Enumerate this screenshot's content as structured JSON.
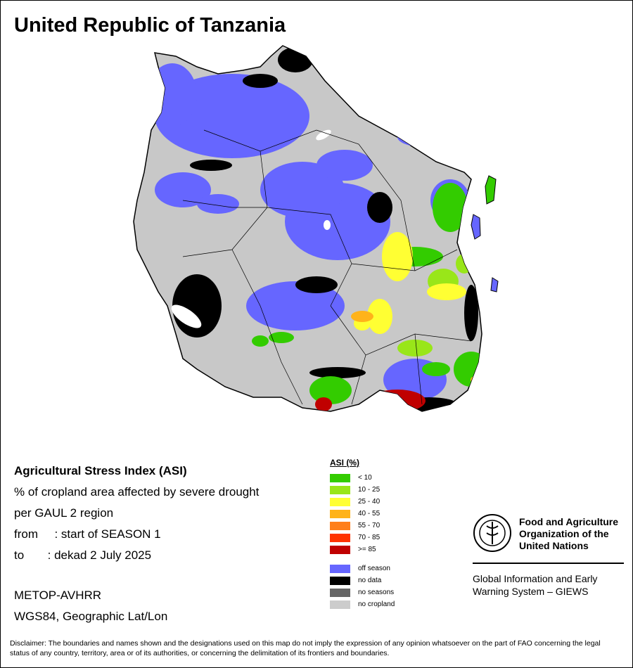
{
  "title": "United Republic of Tanzania",
  "info": {
    "heading": "Agricultural Stress Index (ASI)",
    "line1": "% of cropland area affected by severe drought",
    "line2": "per GAUL 2 region",
    "from_label": "from",
    "from_value": ": start of SEASON 1",
    "to_label": "to",
    "to_value": ": dekad 2 July 2025"
  },
  "sensor": "METOP-AVHRR",
  "projection": "WGS84, Geographic Lat/Lon",
  "legend": {
    "title": "ASI (%)",
    "classes": [
      {
        "label": "< 10",
        "color": "#33cc00"
      },
      {
        "label": "10 - 25",
        "color": "#99e619"
      },
      {
        "label": "25 - 40",
        "color": "#ffff33"
      },
      {
        "label": "40 - 55",
        "color": "#ffb31a"
      },
      {
        "label": "55 - 70",
        "color": "#ff7f1a"
      },
      {
        "label": "70 - 85",
        "color": "#ff3300"
      },
      {
        "label": ">= 85",
        "color": "#c00000"
      }
    ],
    "other": [
      {
        "label": "off season",
        "color": "#6666ff"
      },
      {
        "label": "no data",
        "color": "#000000"
      },
      {
        "label": "no seasons",
        "color": "#666666"
      },
      {
        "label": "no cropland",
        "color": "#cccccc"
      }
    ]
  },
  "fao": {
    "name_line1": "Food and Agriculture",
    "name_line2": "Organization of the",
    "name_line3": "United Nations",
    "giews_line1": "Global Information and Early",
    "giews_line2": "Warning System – GIEWS"
  },
  "disclaimer": "Disclaimer: The boundaries and names shown and the designations used on this map do not imply the expression of any opinion whatsoever on the part of FAO concerning the legal status of any country, territory, area or of its authorities, or concerning the delimitation of its frontiers and boundaries."
}
